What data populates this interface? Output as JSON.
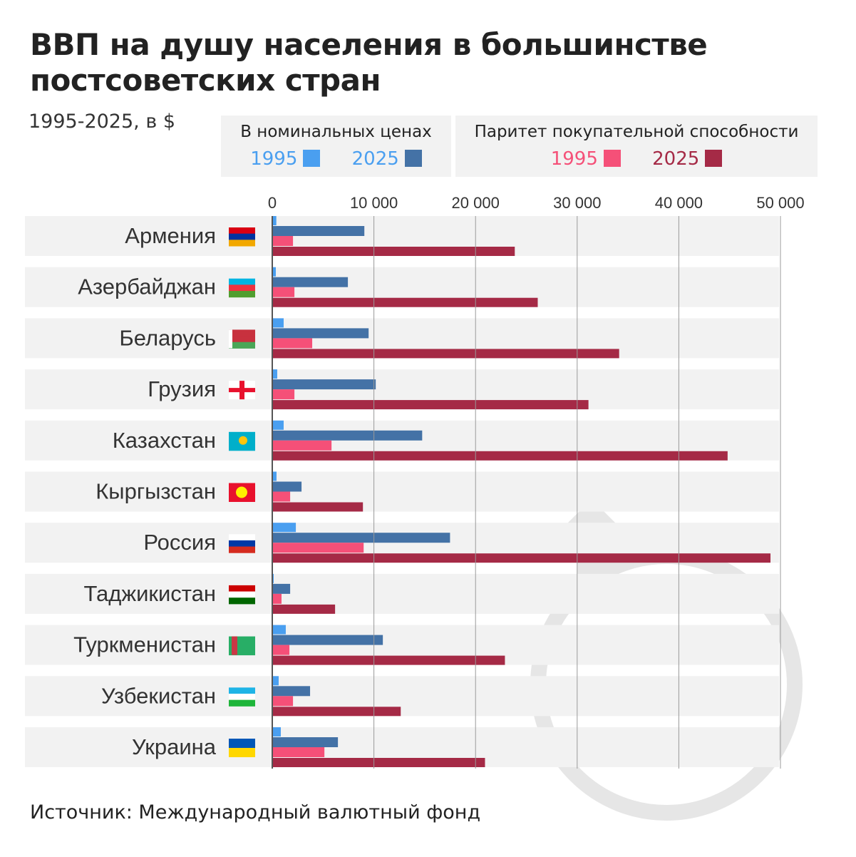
{
  "title": "ВВП на душу населения в большинстве постсоветских стран",
  "subtitle": "1995-2025, в $",
  "source": "Источник: Международный валютный фонд",
  "legend": {
    "nominal": {
      "heading": "В номинальных ценах",
      "y1": "1995",
      "y2": "2025"
    },
    "ppp": {
      "heading": "Паритет покупательной способности",
      "y1": "1995",
      "y2": "2025"
    }
  },
  "colors": {
    "nominal_1995": "#4a9ff0",
    "nominal_2025": "#4472a6",
    "ppp_1995": "#f55078",
    "ppp_2025": "#a52a46",
    "band": "#f2f2f2"
  },
  "chart_data": {
    "type": "bar",
    "orientation": "horizontal",
    "categories": [
      "Армения",
      "Азербайджан",
      "Беларусь",
      "Грузия",
      "Казахстан",
      "Кыргызстан",
      "Россия",
      "Таджикистан",
      "Туркменистан",
      "Узбекистан",
      "Украина"
    ],
    "flags": [
      "armenia-flag",
      "azerbaijan-flag",
      "belarus-flag",
      "georgia-flag",
      "kazakhstan-flag",
      "kyrgyzstan-flag",
      "russia-flag",
      "tajikistan-flag",
      "turkmenistan-flag",
      "uzbekistan-flag",
      "ukraine-flag"
    ],
    "series": [
      {
        "name": "В номинальных ценах 1995",
        "values": [
          400,
          350,
          1120,
          490,
          1120,
          420,
          2320,
          140,
          1330,
          630,
          840
        ]
      },
      {
        "name": "В номинальных ценах 2025",
        "values": [
          9060,
          7440,
          9480,
          10180,
          14750,
          2880,
          17490,
          1760,
          10880,
          3720,
          6460
        ]
      },
      {
        "name": "Паритет покупательной способности 1995",
        "values": [
          2040,
          2180,
          3930,
          2180,
          5830,
          1760,
          8990,
          910,
          1690,
          2040,
          5130
        ]
      },
      {
        "name": "Паритет покупательной способности 2025",
        "values": [
          23860,
          26120,
          34130,
          31110,
          44800,
          8920,
          49020,
          6180,
          22890,
          12640,
          20930
        ]
      }
    ],
    "xlim": [
      0,
      50000
    ],
    "xticks": [
      "0",
      "10 000",
      "20 000",
      "30 000",
      "40 000",
      "50 000"
    ],
    "xtick_values": [
      0,
      10000,
      20000,
      30000,
      40000,
      50000
    ],
    "grid": true,
    "legend": "top"
  }
}
